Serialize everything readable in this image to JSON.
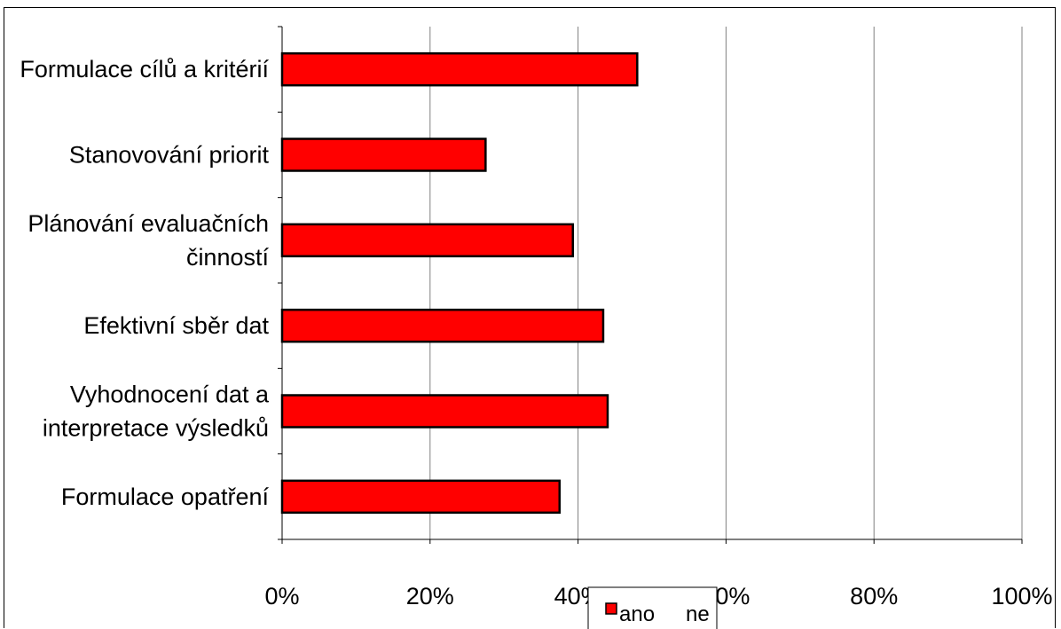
{
  "chart_data": {
    "type": "bar",
    "orientation": "horizontal",
    "categories": [
      "Formulace cílů a kritérií",
      "Stanovování priorit",
      "Plánování evaluačních činností",
      "Efektivní sběr dat",
      "Vyhodnocení dat a interpretace výsledků",
      "Formulace opatření"
    ],
    "category_lines": [
      [
        "Formulace cílů a kritérií"
      ],
      [
        "Stanovování priorit"
      ],
      [
        "Plánování evaluačních",
        "činností"
      ],
      [
        "Efektivní sběr dat"
      ],
      [
        "Vyhodnocení dat a",
        "interpretace výsledků"
      ],
      [
        "Formulace opatření"
      ]
    ],
    "series": [
      {
        "name": "ano",
        "color": "#ff0000",
        "values": [
          48,
          27.5,
          39.3,
          43.4,
          44,
          37.5
        ]
      },
      {
        "name": "ne",
        "color": "#ffffff",
        "values": [
          0,
          0,
          0,
          0,
          0,
          0
        ]
      }
    ],
    "xlim": [
      0,
      100
    ],
    "x_ticks": [
      "0%",
      "20%",
      "40%",
      "60%",
      "80%",
      "100%"
    ],
    "x_tick_values": [
      0,
      20,
      40,
      60,
      80,
      100
    ],
    "grid": true,
    "legend_position": "bottom-center"
  }
}
